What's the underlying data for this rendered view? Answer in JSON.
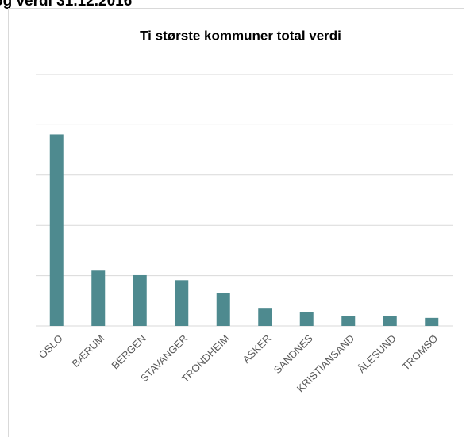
{
  "header": {
    "text": "og verdi 31.12.2016"
  },
  "chart_data": {
    "type": "bar",
    "title": "Ti største kommuner total verdi",
    "categories": [
      "OSLO",
      "BÆRUM",
      "BERGEN",
      "STAVANGER",
      "TRONDHEIM",
      "ASKER",
      "SANDNES",
      "KRISTIANSAND",
      "ÅLESUND",
      "TROMSØ"
    ],
    "values": [
      3.81,
      1.1,
      1.01,
      0.91,
      0.65,
      0.36,
      0.28,
      0.2,
      0.2,
      0.16
    ],
    "color": "#4e8a8f",
    "ylim": [
      0,
      5
    ],
    "yticks": [
      0,
      1,
      2,
      3,
      4,
      5
    ],
    "grid": true
  }
}
